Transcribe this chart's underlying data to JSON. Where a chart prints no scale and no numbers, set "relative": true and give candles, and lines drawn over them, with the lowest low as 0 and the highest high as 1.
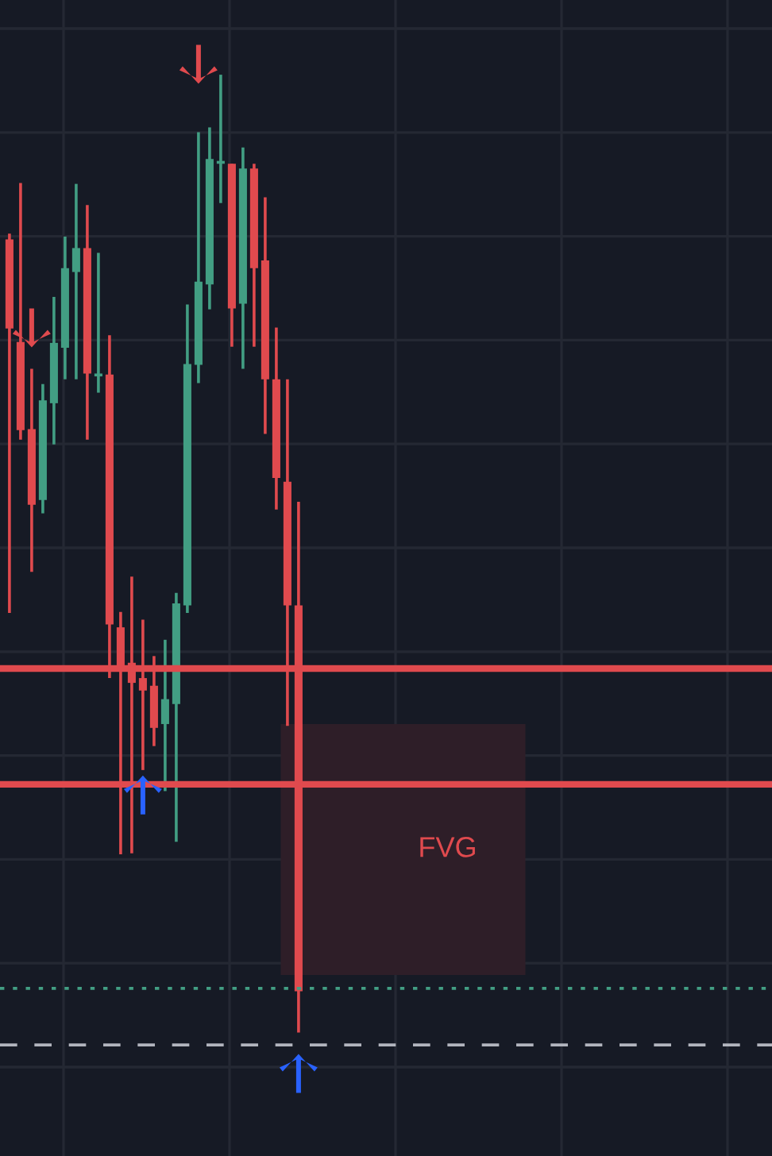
{
  "chart_data": {
    "type": "candlestick",
    "relative": true,
    "grid": true,
    "categories": [
      null,
      null,
      null,
      null,
      null,
      null,
      null,
      null,
      null,
      null,
      null,
      null,
      null,
      null,
      null,
      null,
      null,
      null,
      null,
      null,
      null,
      null,
      null,
      null,
      null,
      null,
      null
    ],
    "colors": [
      "#e04a4e",
      "#e04a4e",
      "#e04a4e",
      "#429e83",
      "#429e83",
      "#429e83",
      "#429e83",
      "#e04a4e",
      "#429e83",
      "#e04a4e",
      "#e04a4e",
      "#e04a4e",
      "#e04a4e",
      "#e04a4e",
      "#429e83",
      "#429e83",
      "#429e83",
      "#429e83",
      "#429e83",
      "#429e83",
      "#e04a4e",
      "#429e83",
      "#e04a4e",
      "#e04a4e",
      "#e04a4e",
      "#e04a4e",
      "#e04a4e"
    ],
    "ohlc": [
      [
        0.828,
        0.834,
        0.438,
        0.735
      ],
      [
        0.721,
        0.887,
        0.619,
        0.629
      ],
      [
        0.63,
        0.693,
        0.481,
        0.551
      ],
      [
        0.556,
        0.677,
        0.542,
        0.66
      ],
      [
        0.657,
        0.768,
        0.614,
        0.72
      ],
      [
        0.715,
        0.831,
        0.682,
        0.798
      ],
      [
        0.794,
        0.886,
        0.682,
        0.819
      ],
      [
        0.819,
        0.864,
        0.619,
        0.688
      ],
      [
        0.685,
        0.814,
        0.668,
        0.687
      ],
      [
        0.687,
        0.728,
        0.37,
        0.426
      ],
      [
        0.423,
        0.439,
        0.186,
        0.378
      ],
      [
        0.386,
        0.476,
        0.187,
        0.365
      ],
      [
        0.37,
        0.431,
        0.274,
        0.357
      ],
      [
        0.362,
        0.393,
        0.299,
        0.318
      ],
      [
        0.322,
        0.41,
        0.252,
        0.348
      ],
      [
        0.343,
        0.459,
        0.199,
        0.448
      ],
      [
        0.446,
        0.76,
        0.438,
        0.698
      ],
      [
        0.697,
        0.94,
        0.678,
        0.784
      ],
      [
        0.781,
        0.945,
        0.755,
        0.912
      ],
      [
        0.907,
        1.0,
        0.866,
        0.909
      ],
      [
        0.907,
        0.907,
        0.716,
        0.756
      ],
      [
        0.761,
        0.924,
        0.693,
        0.902
      ],
      [
        0.902,
        0.907,
        0.716,
        0.798
      ],
      [
        0.806,
        0.872,
        0.625,
        0.682
      ],
      [
        0.682,
        0.736,
        0.546,
        0.579
      ],
      [
        0.575,
        0.682,
        0.32,
        0.446
      ],
      [
        0.446,
        0.554,
        0.0,
        0.043
      ]
    ],
    "ref_lines": [
      {
        "axis": "y",
        "value": 0.38,
        "color": "#e04a4e",
        "line_style": "solid"
      },
      {
        "axis": "y",
        "value": 0.259,
        "color": "#e04a4e",
        "line_style": "solid"
      },
      {
        "axis": "y",
        "value": 0.046,
        "color": "#429e83",
        "line_style": "dotted"
      },
      {
        "axis": "y",
        "value": -0.013,
        "color": "#b2b5be",
        "line_style": "dashed"
      }
    ],
    "bands": [
      {
        "axis": "y",
        "from": 0.06,
        "to": 0.322,
        "label": "FVG",
        "color": "#2e1e28"
      }
    ]
  }
}
